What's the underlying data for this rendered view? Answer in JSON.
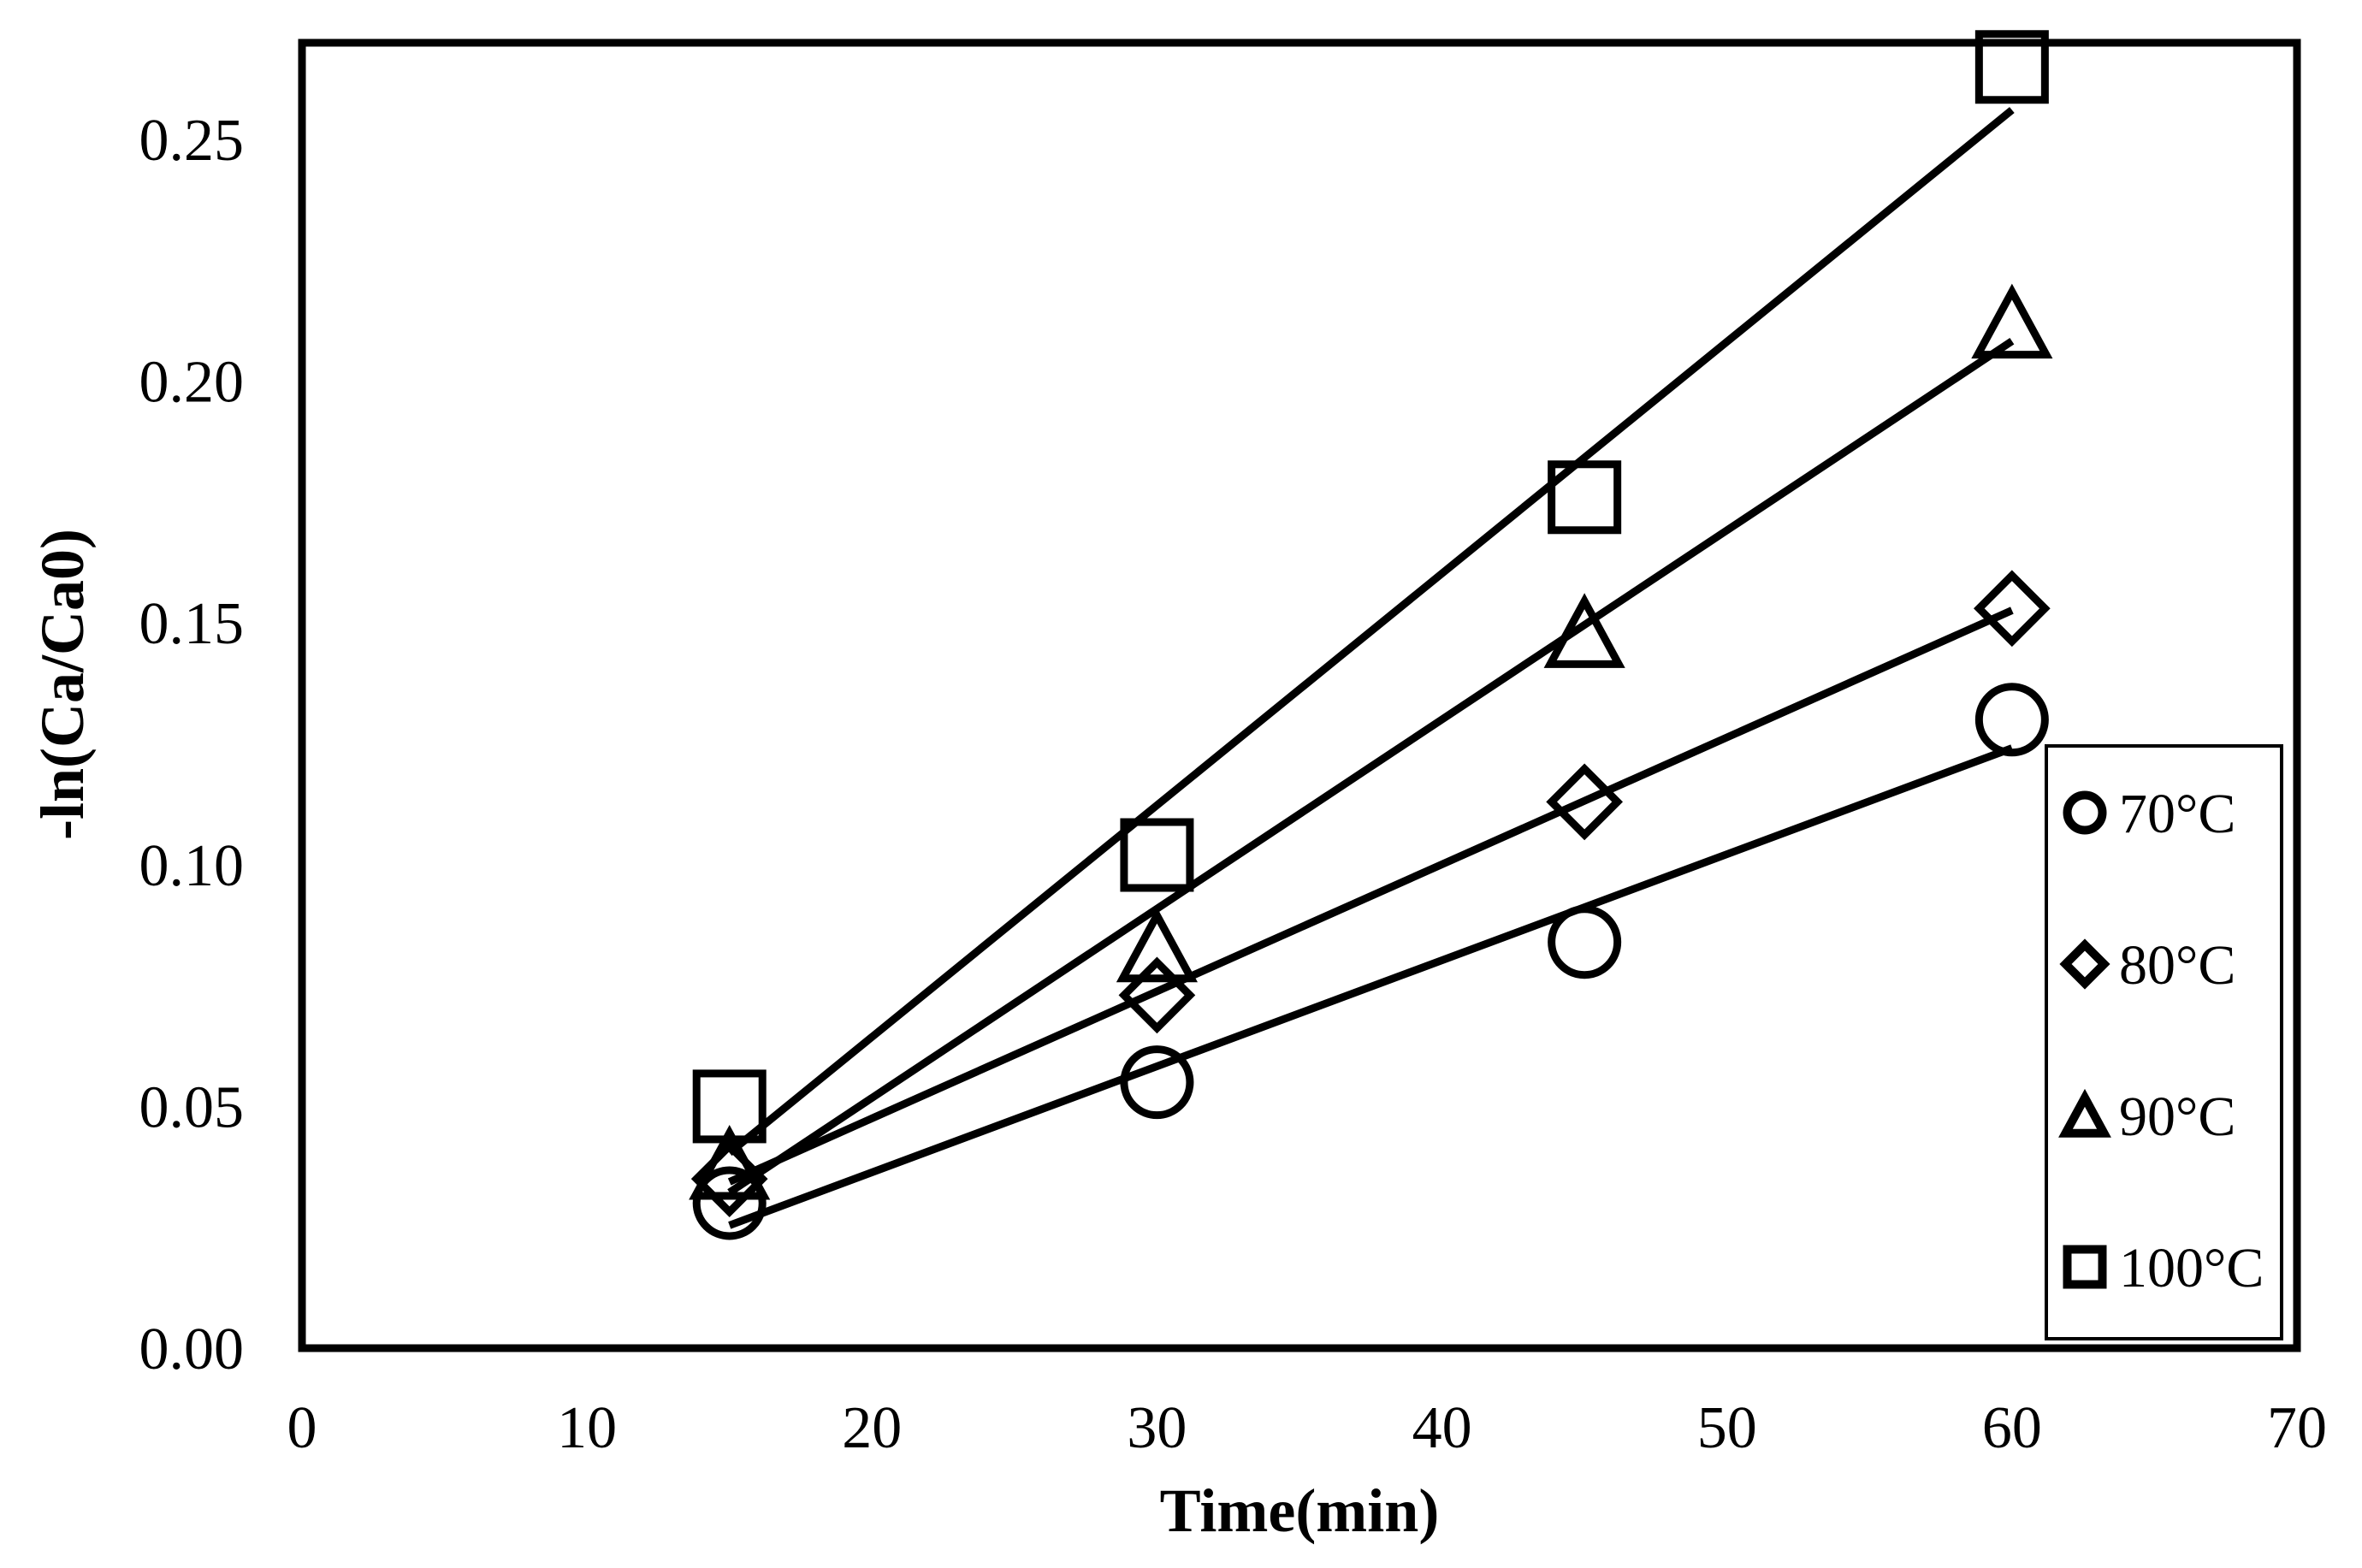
{
  "chart_data": {
    "type": "scatter",
    "title": "",
    "xlabel": "Time(min)",
    "ylabel": "-ln(Ca/Ca0)",
    "xlim": [
      0,
      70
    ],
    "ylim": [
      0,
      0.27
    ],
    "xticks": [
      "0",
      "10",
      "20",
      "30",
      "40",
      "50",
      "60",
      "70"
    ],
    "yticks": [
      "0.00",
      "0.05",
      "0.10",
      "0.15",
      "0.20",
      "0.25"
    ],
    "grid": false,
    "x": [
      15,
      30,
      45,
      60
    ],
    "series": [
      {
        "name": "70°C",
        "marker": "circle",
        "values": [
          0.03,
          0.055,
          0.084,
          0.13
        ],
        "trendline": "linear"
      },
      {
        "name": "80°C",
        "marker": "diamond",
        "values": [
          0.035,
          0.073,
          0.113,
          0.153
        ],
        "trendline": "linear"
      },
      {
        "name": "90°C",
        "marker": "triangle",
        "values": [
          0.038,
          0.083,
          0.148,
          0.212
        ],
        "trendline": "linear"
      },
      {
        "name": "100°C",
        "marker": "square",
        "values": [
          0.05,
          0.102,
          0.176,
          0.265
        ],
        "trendline": "linear"
      }
    ],
    "legend": {
      "position": "inside-right",
      "entries": [
        "70°C",
        "80°C",
        "90°C",
        "100°C"
      ]
    },
    "colors": {
      "foreground": "#000000",
      "background": "#ffffff"
    }
  }
}
